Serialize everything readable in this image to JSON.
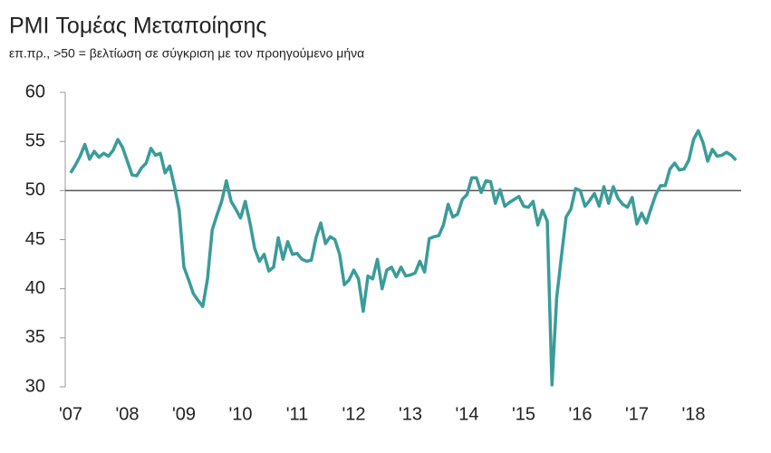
{
  "chart_data": {
    "type": "line",
    "title": "PMI Τομέας Μεταποίησης",
    "subtitle": "επ.πρ., >50 = βελτίωση σε σύγκριση με τον προηγούμενο μήνα",
    "categories": [
      "'07",
      null,
      null,
      null,
      null,
      null,
      null,
      null,
      null,
      null,
      null,
      null,
      "'08",
      null,
      null,
      null,
      null,
      null,
      null,
      null,
      null,
      null,
      null,
      null,
      "'09",
      null,
      null,
      null,
      null,
      null,
      null,
      null,
      null,
      null,
      null,
      null,
      "'10",
      null,
      null,
      null,
      null,
      null,
      null,
      null,
      null,
      null,
      null,
      null,
      "'11",
      null,
      null,
      null,
      null,
      null,
      null,
      null,
      null,
      null,
      null,
      null,
      "'12",
      null,
      null,
      null,
      null,
      null,
      null,
      null,
      null,
      null,
      null,
      null,
      "'13",
      null,
      null,
      null,
      null,
      null,
      null,
      null,
      null,
      null,
      null,
      null,
      "'14",
      null,
      null,
      null,
      null,
      null,
      null,
      null,
      null,
      null,
      null,
      null,
      "'15",
      null,
      null,
      null,
      null,
      null,
      null,
      null,
      null,
      null,
      null,
      null,
      "'16",
      null,
      null,
      null,
      null,
      null,
      null,
      null,
      null,
      null,
      null,
      null,
      "'17",
      null,
      null,
      null,
      null,
      null,
      null,
      null,
      null,
      null,
      null,
      null,
      "'18",
      null,
      null,
      null,
      null,
      null,
      null,
      null,
      null,
      null
    ],
    "values": [
      51.8,
      52.6,
      53.5,
      54.7,
      53.2,
      54.0,
      53.4,
      53.8,
      53.5,
      54.1,
      55.2,
      54.4,
      53.0,
      51.6,
      51.5,
      52.3,
      52.8,
      54.3,
      53.6,
      53.8,
      51.8,
      52.5,
      50.4,
      48.0,
      42.2,
      40.9,
      39.5,
      38.8,
      38.2,
      41.0,
      46.0,
      47.5,
      48.9,
      51.0,
      48.9,
      48.1,
      47.2,
      48.9,
      46.7,
      44.1,
      42.8,
      43.5,
      41.8,
      42.2,
      45.2,
      43.0,
      44.8,
      43.5,
      43.6,
      43.0,
      42.8,
      42.9,
      45.2,
      46.7,
      44.6,
      45.3,
      45.0,
      43.5,
      40.4,
      40.9,
      41.9,
      41.0,
      37.7,
      41.3,
      41.0,
      43.0,
      40.0,
      41.9,
      42.2,
      41.2,
      42.2,
      41.3,
      41.4,
      41.6,
      42.8,
      41.7,
      45.1,
      45.3,
      45.4,
      46.5,
      48.6,
      47.3,
      47.6,
      49.1,
      49.6,
      51.3,
      51.3,
      49.8,
      51.0,
      50.9,
      48.7,
      50.1,
      48.4,
      48.8,
      49.1,
      49.4,
      48.4,
      48.3,
      48.9,
      46.5,
      48.0,
      46.9,
      30.2,
      39.1,
      43.3,
      47.3,
      48.1,
      50.2,
      50.0,
      48.4,
      49.0,
      49.7,
      48.4,
      50.4,
      48.7,
      50.4,
      49.2,
      48.6,
      48.3,
      49.3,
      46.6,
      47.7,
      46.7,
      48.2,
      49.6,
      50.5,
      50.5,
      52.2,
      52.8,
      52.1,
      52.2,
      53.1,
      55.2,
      56.1,
      54.9,
      53.0,
      54.2,
      53.5,
      53.6,
      53.9,
      53.6,
      53.1
    ],
    "color": "#3a9c99",
    "ylim": [
      30,
      60
    ],
    "yticks": [
      30,
      35,
      40,
      45,
      50,
      55,
      60
    ],
    "reference_line": 50
  }
}
